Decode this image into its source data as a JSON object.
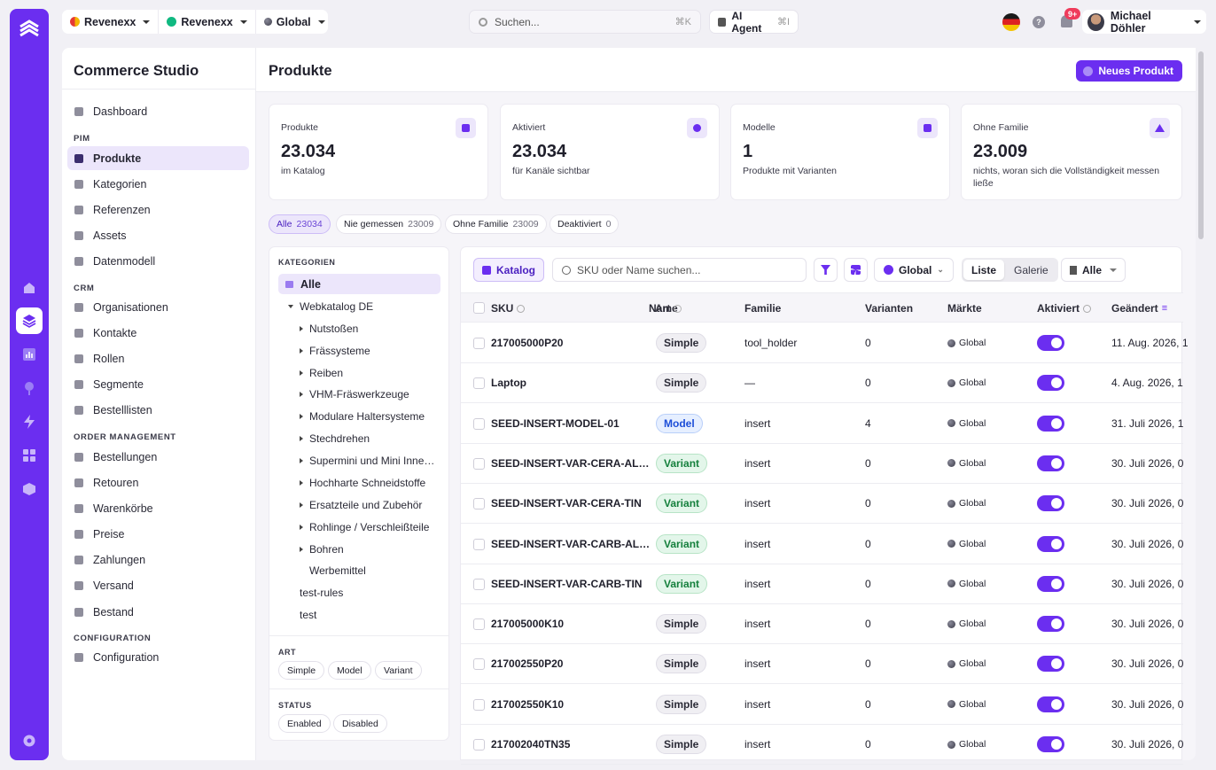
{
  "topbar": {
    "workspace": "Revenexx",
    "store": "Revenexx",
    "scope": "Global",
    "search_placeholder": "Suchen...",
    "search_shortcut": "⌘K",
    "ai_agent": "AI Agent",
    "ai_shortcut": "⌘I",
    "notif_count": "9+",
    "user_name": "Michael Döhler",
    "help": "?"
  },
  "sidebar": {
    "brand": "Commerce Studio",
    "dashboard": "Dashboard",
    "sections": {
      "pim": "PIM",
      "crm": "CRM",
      "order": "ORDER MANAGEMENT",
      "config": "CONFIGURATION"
    },
    "pim": [
      "Produkte",
      "Kategorien",
      "Referenzen",
      "Assets",
      "Datenmodell"
    ],
    "crm": [
      "Organisationen",
      "Kontakte",
      "Rollen",
      "Segmente",
      "Bestelllisten"
    ],
    "order": [
      "Bestellungen",
      "Retouren",
      "Warenkörbe",
      "Preise",
      "Zahlungen",
      "Versand",
      "Bestand"
    ],
    "config": [
      "Configuration"
    ]
  },
  "page": {
    "title": "Produkte",
    "new_button": "Neues Produkt"
  },
  "stats": [
    {
      "label": "Produkte",
      "value": "23.034",
      "sub": "im Katalog"
    },
    {
      "label": "Aktiviert",
      "value": "23.034",
      "sub": "für Kanäle sichtbar"
    },
    {
      "label": "Modelle",
      "value": "1",
      "sub": "Produkte mit Varianten"
    },
    {
      "label": "Ohne Familie",
      "value": "23.009",
      "sub": "nichts, woran sich die Vollständigkeit messen ließe"
    }
  ],
  "filters": [
    {
      "label": "Alle",
      "count": "23034"
    },
    {
      "label": "Nie gemessen",
      "count": "23009"
    },
    {
      "label": "Ohne Familie",
      "count": "23009"
    },
    {
      "label": "Deaktiviert",
      "count": "0"
    }
  ],
  "categories": {
    "heading": "KATEGORIEN",
    "all": "Alle",
    "root": "Webkatalog DE",
    "children": [
      "Nutstoßen",
      "Frässysteme",
      "Reiben",
      "VHM-Fräswerkzeuge",
      "Modulare Haltersysteme",
      "Stechdrehen",
      "Supermini und Mini Inne…",
      "Hochharte Schneidstoffe",
      "Ersatzteile und Zubehör",
      "Rohlinge / Verschleißteile",
      "Bohren",
      "Werbemittel"
    ],
    "others": [
      "test-rules",
      "test"
    ],
    "art_heading": "ART",
    "art": [
      "Simple",
      "Model",
      "Variant"
    ],
    "status_heading": "STATUS",
    "status": [
      "Enabled",
      "Disabled"
    ]
  },
  "toolbar": {
    "katalog": "Katalog",
    "search_placeholder": "SKU oder Name suchen...",
    "scope": "Global",
    "view_list": "Liste",
    "view_gallery": "Galerie",
    "filter_all": "Alle"
  },
  "table": {
    "headers": {
      "sku": "SKU",
      "name": "Name",
      "art": "Art",
      "family": "Familie",
      "variants": "Varianten",
      "markets": "Märkte",
      "active": "Aktiviert",
      "changed": "Geändert"
    },
    "rows": [
      {
        "sku": "217005000P20",
        "art": "Simple",
        "family": "tool_holder",
        "variants": "0",
        "market": "Global",
        "changed": "11. Aug. 2026, 1"
      },
      {
        "sku": "Laptop",
        "art": "Simple",
        "family": "—",
        "variants": "0",
        "market": "Global",
        "changed": "4. Aug. 2026, 1"
      },
      {
        "sku": "SEED-INSERT-MODEL-01",
        "art": "Model",
        "family": "insert",
        "variants": "4",
        "market": "Global",
        "changed": "31. Juli 2026, 1"
      },
      {
        "sku": "SEED-INSERT-VAR-CERA-AL…",
        "art": "Variant",
        "family": "insert",
        "variants": "0",
        "market": "Global",
        "changed": "30. Juli 2026, 0"
      },
      {
        "sku": "SEED-INSERT-VAR-CERA-TIN",
        "art": "Variant",
        "family": "insert",
        "variants": "0",
        "market": "Global",
        "changed": "30. Juli 2026, 0"
      },
      {
        "sku": "SEED-INSERT-VAR-CARB-AL…",
        "art": "Variant",
        "family": "insert",
        "variants": "0",
        "market": "Global",
        "changed": "30. Juli 2026, 0"
      },
      {
        "sku": "SEED-INSERT-VAR-CARB-TIN",
        "art": "Variant",
        "family": "insert",
        "variants": "0",
        "market": "Global",
        "changed": "30. Juli 2026, 0"
      },
      {
        "sku": "217005000K10",
        "art": "Simple",
        "family": "insert",
        "variants": "0",
        "market": "Global",
        "changed": "30. Juli 2026, 0"
      },
      {
        "sku": "217002550P20",
        "art": "Simple",
        "family": "insert",
        "variants": "0",
        "market": "Global",
        "changed": "30. Juli 2026, 0"
      },
      {
        "sku": "217002550K10",
        "art": "Simple",
        "family": "insert",
        "variants": "0",
        "market": "Global",
        "changed": "30. Juli 2026, 0"
      },
      {
        "sku": "217002040TN35",
        "art": "Simple",
        "family": "insert",
        "variants": "0",
        "market": "Global",
        "changed": "30. Juli 2026, 0"
      }
    ]
  },
  "colors": {
    "accent": "#6b2ef0",
    "accent_soft": "#ece6fb"
  }
}
